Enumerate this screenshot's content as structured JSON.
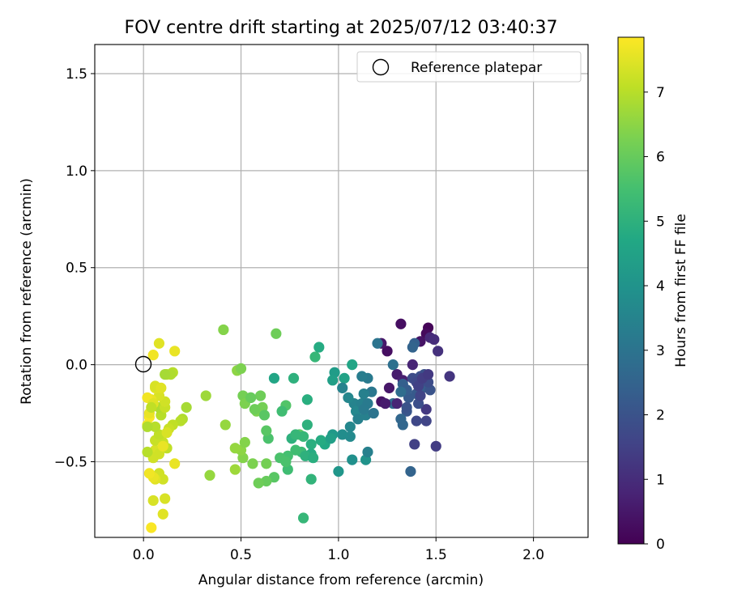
{
  "chart_data": {
    "type": "scatter",
    "title": "FOV centre drift starting at 2025/07/12 03:40:37",
    "xlabel": "Angular distance from reference (arcmin)",
    "ylabel": "Rotation from reference (arcmin)",
    "xlim": [
      -0.25,
      2.28
    ],
    "ylim": [
      -0.89,
      1.65
    ],
    "xticks": [
      0.0,
      0.5,
      1.0,
      1.5,
      2.0
    ],
    "xtick_labels": [
      "0.0",
      "0.5",
      "1.0",
      "1.5",
      "2.0"
    ],
    "yticks": [
      -0.5,
      0.0,
      0.5,
      1.0,
      1.5
    ],
    "ytick_labels": [
      "−0.5",
      "0.0",
      "0.5",
      "1.0",
      "1.5"
    ],
    "grid": true,
    "legend": {
      "position": "top-right",
      "entries": [
        {
          "label": "Reference platepar",
          "marker": "open-circle"
        }
      ]
    },
    "reference": {
      "x": 0.0,
      "y": 0.0
    },
    "colorbar": {
      "label": "Hours from first FF file",
      "colormap": "viridis",
      "range": [
        0,
        7.85
      ],
      "ticks": [
        0,
        1,
        2,
        3,
        4,
        5,
        6,
        7
      ],
      "tick_labels": [
        "0",
        "1",
        "2",
        "3",
        "4",
        "5",
        "6",
        "7"
      ]
    },
    "points": [
      [
        1.46,
        0.19,
        0.1
      ],
      [
        1.32,
        0.21,
        0.3
      ],
      [
        1.45,
        0.16,
        0.2
      ],
      [
        1.42,
        0.12,
        0.4
      ],
      [
        1.25,
        0.07,
        0.3
      ],
      [
        1.22,
        0.11,
        0.5
      ],
      [
        1.3,
        -0.05,
        0.6
      ],
      [
        1.33,
        -0.08,
        0.7
      ],
      [
        1.38,
        0.0,
        0.8
      ],
      [
        1.47,
        0.14,
        0.9
      ],
      [
        1.49,
        0.13,
        1.0
      ],
      [
        1.51,
        0.07,
        1.1
      ],
      [
        1.57,
        -0.06,
        1.2
      ],
      [
        1.45,
        -0.23,
        1.3
      ],
      [
        1.5,
        -0.42,
        1.4
      ],
      [
        1.39,
        -0.41,
        1.5
      ],
      [
        1.45,
        -0.29,
        1.6
      ],
      [
        1.4,
        -0.29,
        1.7
      ],
      [
        1.38,
        -0.07,
        1.8
      ],
      [
        1.41,
        -0.2,
        1.9
      ],
      [
        1.44,
        -0.05,
        2.0
      ],
      [
        1.35,
        -0.24,
        2.1
      ],
      [
        1.36,
        -0.17,
        2.2
      ],
      [
        1.43,
        -0.12,
        2.3
      ],
      [
        1.39,
        0.11,
        2.4
      ],
      [
        1.37,
        -0.55,
        2.5
      ],
      [
        1.32,
        -0.28,
        2.6
      ],
      [
        1.28,
        -0.2,
        2.7
      ],
      [
        1.26,
        -0.12,
        0.5
      ],
      [
        1.22,
        -0.19,
        0.4
      ],
      [
        1.28,
        0.0,
        2.9
      ],
      [
        1.2,
        0.11,
        3.0
      ],
      [
        1.17,
        -0.14,
        3.1
      ],
      [
        1.15,
        -0.07,
        3.2
      ],
      [
        1.12,
        -0.06,
        3.3
      ],
      [
        1.13,
        -0.15,
        3.4
      ],
      [
        1.08,
        -0.2,
        3.5
      ],
      [
        1.05,
        -0.17,
        3.6
      ],
      [
        1.06,
        -0.37,
        3.7
      ],
      [
        1.02,
        -0.36,
        3.8
      ],
      [
        1.07,
        -0.49,
        3.9
      ],
      [
        1.14,
        -0.49,
        4.0
      ],
      [
        1.0,
        -0.55,
        4.1
      ],
      [
        0.97,
        -0.36,
        4.2
      ],
      [
        0.98,
        -0.04,
        4.3
      ],
      [
        0.97,
        -0.08,
        4.4
      ],
      [
        1.03,
        -0.07,
        4.5
      ],
      [
        1.07,
        0.0,
        4.6
      ],
      [
        0.93,
        -0.41,
        4.7
      ],
      [
        0.91,
        -0.39,
        4.8
      ],
      [
        0.86,
        -0.41,
        4.9
      ],
      [
        0.84,
        -0.31,
        5.0
      ],
      [
        0.86,
        -0.59,
        5.1
      ],
      [
        0.82,
        -0.79,
        5.2
      ],
      [
        0.81,
        -0.45,
        5.3
      ],
      [
        0.78,
        -0.44,
        5.4
      ],
      [
        0.74,
        -0.47,
        5.5
      ],
      [
        0.7,
        -0.48,
        5.6
      ],
      [
        0.73,
        -0.21,
        5.7
      ],
      [
        0.8,
        -0.36,
        5.8
      ],
      [
        0.9,
        0.09,
        4.8
      ],
      [
        0.88,
        0.04,
        5.2
      ],
      [
        0.77,
        -0.07,
        5.0
      ],
      [
        0.67,
        -0.07,
        4.6
      ],
      [
        0.84,
        -0.18,
        4.9
      ],
      [
        0.67,
        -0.58,
        5.8
      ],
      [
        0.63,
        -0.6,
        6.0
      ],
      [
        0.59,
        -0.61,
        6.1
      ],
      [
        0.63,
        -0.51,
        6.2
      ],
      [
        0.56,
        -0.51,
        6.3
      ],
      [
        0.51,
        -0.48,
        6.4
      ],
      [
        0.5,
        -0.44,
        6.5
      ],
      [
        0.52,
        -0.4,
        6.4
      ],
      [
        0.58,
        -0.24,
        6.3
      ],
      [
        0.61,
        -0.22,
        6.2
      ],
      [
        0.6,
        -0.16,
        6.1
      ],
      [
        0.55,
        -0.17,
        6.0
      ],
      [
        0.51,
        -0.16,
        6.2
      ],
      [
        0.52,
        -0.2,
        6.3
      ],
      [
        0.48,
        -0.03,
        6.5
      ],
      [
        0.5,
        -0.02,
        6.3
      ],
      [
        0.47,
        -0.43,
        6.6
      ],
      [
        0.47,
        -0.54,
        6.7
      ],
      [
        0.42,
        -0.31,
        6.6
      ],
      [
        0.41,
        0.18,
        6.4
      ],
      [
        0.68,
        0.16,
        6.1
      ],
      [
        0.34,
        -0.57,
        6.6
      ],
      [
        0.32,
        -0.16,
        6.7
      ],
      [
        0.22,
        -0.22,
        6.8
      ],
      [
        0.2,
        -0.28,
        6.9
      ],
      [
        0.19,
        -0.29,
        7.0
      ],
      [
        0.12,
        -0.43,
        7.1
      ],
      [
        0.15,
        -0.31,
        7.1
      ],
      [
        0.13,
        -0.33,
        7.2
      ],
      [
        0.1,
        -0.4,
        7.2
      ],
      [
        0.08,
        -0.56,
        7.3
      ],
      [
        0.1,
        -0.59,
        7.3
      ],
      [
        0.11,
        -0.69,
        7.4
      ],
      [
        0.1,
        -0.77,
        7.5
      ],
      [
        0.05,
        -0.7,
        7.4
      ],
      [
        0.06,
        -0.59,
        7.5
      ],
      [
        0.05,
        -0.58,
        7.6
      ],
      [
        0.03,
        -0.56,
        7.7
      ],
      [
        0.04,
        -0.84,
        7.8
      ],
      [
        0.06,
        -0.44,
        7.4
      ],
      [
        0.08,
        -0.46,
        7.3
      ],
      [
        0.06,
        -0.39,
        7.2
      ],
      [
        0.08,
        -0.36,
        7.1
      ],
      [
        0.09,
        -0.26,
        7.0
      ],
      [
        0.08,
        -0.22,
        6.9
      ],
      [
        0.11,
        -0.22,
        7.2
      ],
      [
        0.11,
        -0.19,
        7.3
      ],
      [
        0.08,
        -0.16,
        7.4
      ],
      [
        0.06,
        -0.12,
        7.5
      ],
      [
        0.04,
        -0.18,
        7.6
      ],
      [
        0.02,
        -0.17,
        7.7
      ],
      [
        0.03,
        -0.27,
        7.8
      ],
      [
        0.02,
        -0.31,
        7.7
      ],
      [
        0.03,
        -0.25,
        7.6
      ],
      [
        0.05,
        -0.2,
        7.5
      ],
      [
        0.06,
        -0.11,
        7.4
      ],
      [
        0.09,
        -0.12,
        7.5
      ],
      [
        0.12,
        -0.05,
        7.1
      ],
      [
        0.15,
        -0.04,
        7.0
      ],
      [
        0.16,
        0.07,
        7.6
      ],
      [
        0.08,
        0.11,
        7.5
      ],
      [
        0.05,
        0.05,
        7.7
      ],
      [
        0.14,
        -0.05,
        6.9
      ],
      [
        0.11,
        -0.05,
        6.8
      ],
      [
        0.1,
        -0.42,
        7.6
      ],
      [
        0.12,
        -0.35,
        7.4
      ],
      [
        0.16,
        -0.51,
        7.6
      ],
      [
        0.05,
        -0.48,
        7.3
      ],
      [
        0.06,
        -0.32,
        7.0
      ],
      [
        0.02,
        -0.32,
        6.9
      ],
      [
        0.02,
        -0.45,
        7.0
      ],
      [
        0.04,
        -0.22,
        7.1
      ],
      [
        1.33,
        -0.1,
        2.4
      ],
      [
        1.35,
        -0.13,
        2.3
      ],
      [
        1.4,
        -0.15,
        2.2
      ],
      [
        1.44,
        -0.07,
        2.1
      ],
      [
        1.47,
        -0.13,
        2.0
      ],
      [
        1.42,
        -0.06,
        1.9
      ],
      [
        1.46,
        -0.09,
        1.8
      ],
      [
        1.4,
        -0.09,
        1.7
      ],
      [
        1.35,
        -0.22,
        2.0
      ],
      [
        1.42,
        -0.16,
        1.6
      ],
      [
        1.41,
        -0.11,
        1.5
      ],
      [
        1.43,
        -0.07,
        1.4
      ],
      [
        1.46,
        -0.05,
        1.3
      ],
      [
        1.38,
        0.09,
        2.5
      ],
      [
        1.24,
        -0.2,
        0.6
      ],
      [
        1.3,
        -0.2,
        0.8
      ],
      [
        1.33,
        -0.31,
        2.6
      ],
      [
        1.32,
        -0.14,
        2.8
      ],
      [
        1.09,
        -0.24,
        3.6
      ],
      [
        1.1,
        -0.28,
        3.4
      ],
      [
        1.06,
        -0.32,
        3.6
      ],
      [
        1.12,
        -0.2,
        3.4
      ],
      [
        1.14,
        -0.26,
        3.4
      ],
      [
        1.15,
        -0.2,
        3.2
      ],
      [
        1.13,
        -0.23,
        3.2
      ],
      [
        1.18,
        -0.25,
        3.0
      ],
      [
        1.15,
        -0.45,
        3.4
      ],
      [
        1.02,
        -0.12,
        3.5
      ],
      [
        0.96,
        -0.38,
        4.4
      ],
      [
        0.82,
        -0.37,
        5.2
      ],
      [
        0.76,
        -0.38,
        5.0
      ],
      [
        0.74,
        -0.54,
        5.4
      ],
      [
        0.73,
        -0.5,
        5.6
      ],
      [
        0.64,
        -0.38,
        5.6
      ],
      [
        0.63,
        -0.34,
        5.8
      ],
      [
        0.62,
        -0.26,
        5.8
      ],
      [
        0.55,
        -0.17,
        6.0
      ],
      [
        0.57,
        -0.23,
        6.1
      ],
      [
        0.71,
        -0.24,
        5.4
      ],
      [
        0.86,
        -0.46,
        4.8
      ],
      [
        0.83,
        -0.47,
        5.0
      ],
      [
        0.87,
        -0.48,
        4.9
      ],
      [
        0.78,
        -0.36,
        5.2
      ]
    ]
  }
}
